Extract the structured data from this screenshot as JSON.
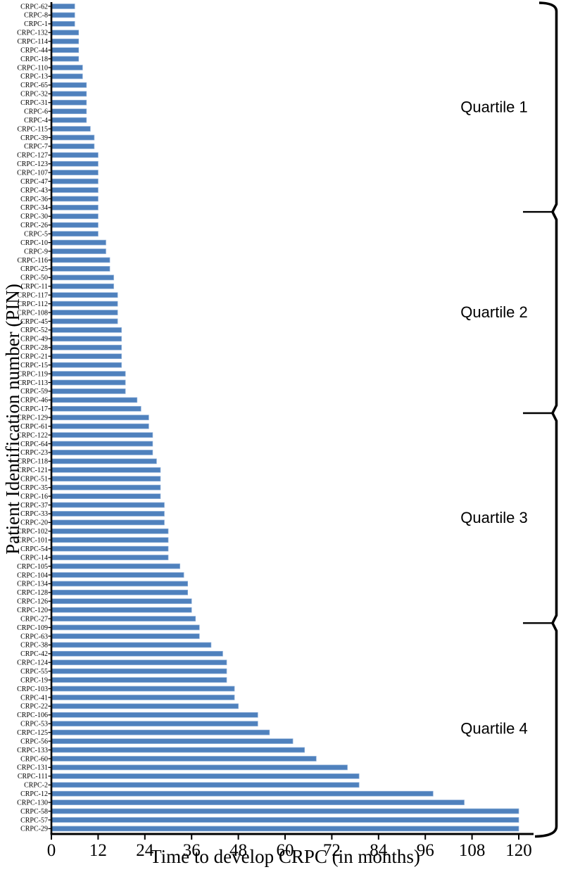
{
  "chart_data": {
    "type": "bar",
    "orientation": "horizontal",
    "title": "",
    "xlabel": "Time to develop CRPC (in months)",
    "ylabel": "Patient Identification number (PIN)",
    "xlim": [
      0,
      120
    ],
    "xticks": [
      0,
      12,
      24,
      36,
      48,
      60,
      72,
      84,
      96,
      108,
      120
    ],
    "grid": false,
    "legend": "none",
    "bar_color": "#4f81bd",
    "bar_edge_color": "#8fb0d9",
    "axis_color": "#000000",
    "bracket_color": "#000000",
    "categories": [
      "CRPC-62",
      "CRPC-8",
      "CRPC-1",
      "CRPC-132",
      "CRPC-114",
      "CRPC-44",
      "CRPC-18",
      "CRPC-110",
      "CRPC-13",
      "CRPC-65",
      "CRPC-32",
      "CRPC-31",
      "CRPC-6",
      "CRPC-4",
      "CRPC-115",
      "CRPC-39",
      "CRPC-7",
      "CRPC-127",
      "CRPC-123",
      "CRPC-107",
      "CRPC-47",
      "CRPC-43",
      "CRPC-36",
      "CRPC-34",
      "CRPC-30",
      "CRPC-26",
      "CRPC-5",
      "CRPC-10",
      "CRPC-9",
      "CRPC-116",
      "CRPC-25",
      "CRPC-50",
      "CRPC-11",
      "CRPC-117",
      "CRPC-112",
      "CRPC-108",
      "CRPC-45",
      "CRPC-52",
      "CRPC-49",
      "CRPC-28",
      "CRPC-21",
      "CRPC-15",
      "CRPC-119",
      "CRPC-113",
      "CRPC-59",
      "CRPC-46",
      "CRPC-17",
      "CRPC-129",
      "CRPC-61",
      "CRPC-122",
      "CRPC-64",
      "CRPC-23",
      "CRPC-118",
      "CRPC-121",
      "CRPC-51",
      "CRPC-35",
      "CRPC-16",
      "CRPC-37",
      "CRPC-33",
      "CRPC-20",
      "CRPC-102",
      "CRPC-101",
      "CRPC-54",
      "CRPC-14",
      "CRPC-105",
      "CRPC-104",
      "CRPC-134",
      "CRPC-128",
      "CRPC-126",
      "CRPC-120",
      "CRPC-27",
      "CRPC-109",
      "CRPC-63",
      "CRPC-38",
      "CRPC-42",
      "CRPC-124",
      "CRPC-55",
      "CRPC-19",
      "CRPC-103",
      "CRPC-41",
      "CRPC-22",
      "CRPC-106",
      "CRPC-53",
      "CRPC-125",
      "CRPC-56",
      "CRPC-133",
      "CRPC-60",
      "CRPC-131",
      "CRPC-111",
      "CRPC-2",
      "CRPC-12",
      "CRPC-130",
      "CRPC-58",
      "CRPC-57",
      "CRPC-29"
    ],
    "values": [
      6,
      6,
      6,
      7,
      7,
      7,
      7,
      8,
      8,
      9,
      9,
      9,
      9,
      9,
      10,
      11,
      11,
      12,
      12,
      12,
      12,
      12,
      12,
      12,
      12,
      12,
      12,
      14,
      14,
      15,
      15,
      16,
      16,
      17,
      17,
      17,
      17,
      18,
      18,
      18,
      18,
      18,
      19,
      19,
      19,
      22,
      23,
      25,
      25,
      26,
      26,
      26,
      27,
      28,
      28,
      28,
      28,
      29,
      29,
      29,
      30,
      30,
      30,
      30,
      33,
      34,
      35,
      35,
      36,
      36,
      37,
      38,
      38,
      41,
      44,
      45,
      45,
      45,
      47,
      47,
      48,
      53,
      53,
      56,
      62,
      65,
      68,
      76,
      79,
      79,
      98,
      106,
      120,
      120,
      120
    ],
    "quartiles": [
      {
        "label": "Quartile 1",
        "from": "CRPC-62",
        "to": "CRPC-34"
      },
      {
        "label": "Quartile 2",
        "from": "CRPC-30",
        "to": "CRPC-17"
      },
      {
        "label": "Quartile 3",
        "from": "CRPC-129",
        "to": "CRPC-27"
      },
      {
        "label": "Quartile 4",
        "from": "CRPC-109",
        "to": "CRPC-29"
      }
    ]
  }
}
